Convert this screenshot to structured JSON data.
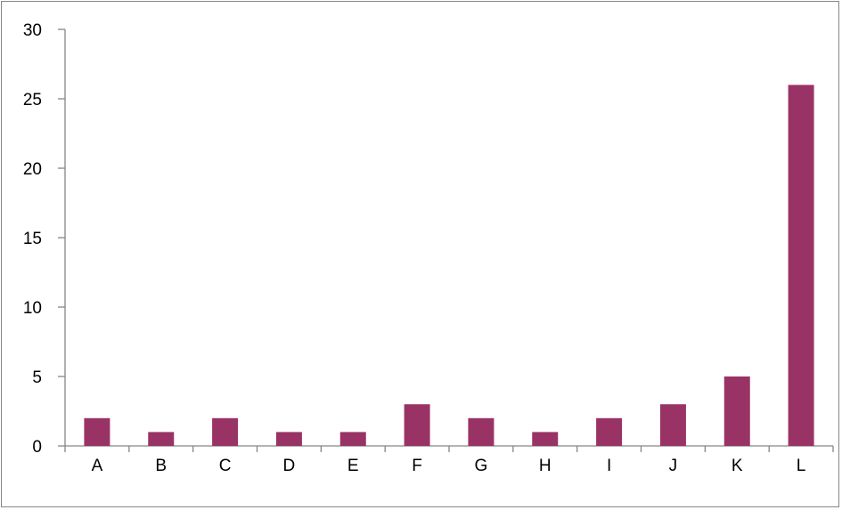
{
  "chart_data": {
    "type": "bar",
    "categories": [
      "A",
      "B",
      "C",
      "D",
      "E",
      "F",
      "G",
      "H",
      "I",
      "J",
      "K",
      "L"
    ],
    "values": [
      2,
      1,
      2,
      1,
      1,
      3,
      2,
      1,
      2,
      3,
      5,
      26
    ],
    "title": "",
    "xlabel": "",
    "ylabel": "",
    "ylim": [
      0,
      30
    ],
    "yticks": [
      0,
      5,
      10,
      15,
      20,
      25,
      30
    ],
    "grid": false,
    "legend": "none",
    "bar_color": "#993366"
  }
}
